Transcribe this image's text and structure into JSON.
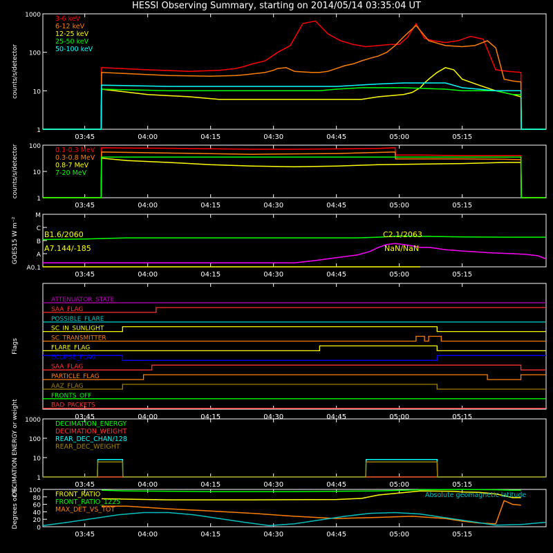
{
  "title": "HESSI Observing Summary, starting on 2014/05/14 03:35:04 UT",
  "x_ticks": [
    "03:45",
    "04:00",
    "04:15",
    "04:30",
    "04:45",
    "05:00",
    "05:15"
  ],
  "chart_data": [
    {
      "id": "lowE",
      "type": "line",
      "ylabel": "counts/s/detector",
      "yscale": "log",
      "ylim": [
        1,
        1000
      ],
      "ytick_labels": [
        "1",
        "10",
        "100",
        "1000"
      ],
      "series": [
        {
          "name": "3-6 keV",
          "color": "#ff0000",
          "x": [
            0,
            13.9,
            14,
            25,
            35,
            42,
            46,
            48,
            50,
            53,
            56,
            59,
            62,
            65,
            68,
            71,
            74,
            77,
            80,
            83,
            85,
            87,
            89,
            91,
            93,
            96,
            99,
            102,
            105,
            108,
            111,
            114,
            114.1,
            120
          ],
          "y": [
            1,
            1,
            40,
            35,
            32,
            34,
            38,
            43,
            50,
            60,
            100,
            150,
            560,
            650,
            300,
            200,
            160,
            140,
            150,
            160,
            160,
            250,
            550,
            230,
            200,
            180,
            200,
            260,
            220,
            35,
            32,
            30,
            1,
            1
          ]
        },
        {
          "name": "6-12 keV",
          "color": "#ff7f00",
          "x": [
            0,
            13.9,
            14,
            30,
            40,
            46,
            48,
            53,
            55,
            56,
            58,
            59,
            60,
            62,
            64,
            66,
            68,
            70,
            72,
            74,
            76,
            78,
            80,
            82,
            84,
            86,
            89,
            92,
            96,
            100,
            103,
            106,
            108,
            110,
            112,
            114,
            114.1,
            120
          ],
          "y": [
            1,
            1,
            30,
            25,
            24,
            25,
            26,
            30,
            34,
            38,
            40,
            36,
            32,
            31,
            30,
            30,
            32,
            38,
            45,
            50,
            60,
            70,
            80,
            100,
            150,
            250,
            500,
            200,
            150,
            140,
            150,
            200,
            130,
            20,
            18,
            17,
            1,
            1
          ]
        },
        {
          "name": "12-25 keV",
          "color": "#ffff00",
          "x": [
            0,
            13.9,
            14,
            25,
            35,
            42,
            48,
            53,
            56,
            60,
            66,
            70,
            76,
            80,
            86,
            88,
            90,
            91,
            92,
            94,
            96,
            98,
            100,
            104,
            108,
            112,
            114,
            114.1,
            120
          ],
          "y": [
            1,
            1,
            11,
            8,
            7,
            6,
            6,
            6,
            6,
            6,
            6,
            6,
            6,
            7,
            8,
            9,
            12,
            16,
            20,
            30,
            40,
            35,
            20,
            14,
            10,
            8,
            7,
            1,
            1
          ]
        },
        {
          "name": "25-50 keV",
          "color": "#00ff00",
          "x": [
            0,
            13.9,
            14,
            30,
            50,
            60,
            66,
            70,
            76,
            86,
            96,
            100,
            104,
            108,
            112,
            114,
            114.1,
            120
          ],
          "y": [
            1,
            1,
            11,
            10,
            10,
            10,
            10,
            11,
            12,
            12,
            11,
            10,
            10,
            10,
            8,
            8,
            1,
            1
          ]
        },
        {
          "name": "50-100 keV",
          "color": "#00ffff",
          "x": [
            0,
            13.9,
            14,
            30,
            50,
            60,
            70,
            80,
            86,
            96,
            100,
            104,
            108,
            112,
            114,
            114.1,
            120
          ],
          "y": [
            1,
            1,
            14,
            13,
            13,
            13,
            13,
            15,
            16,
            16,
            12,
            11,
            10,
            10,
            10,
            1,
            1
          ]
        }
      ]
    },
    {
      "id": "highE",
      "type": "line",
      "ylabel": "counts/s/detector",
      "yscale": "log",
      "ylim": [
        1,
        100
      ],
      "ytick_labels": [
        "1",
        "10",
        "100"
      ],
      "series": [
        {
          "name": "0.1-0.3 MeV",
          "color": "#ff0000",
          "x": [
            0,
            13.9,
            14,
            20,
            30,
            40,
            50,
            60,
            70,
            80,
            84,
            84.1,
            90,
            100,
            110,
            114,
            114.1,
            120
          ],
          "y": [
            1,
            1,
            80,
            78,
            76,
            73,
            70,
            70,
            72,
            75,
            80,
            42,
            42,
            40,
            40,
            40,
            1,
            1
          ]
        },
        {
          "name": "0.3-0.8 MeV",
          "color": "#ff7f00",
          "x": [
            0,
            13.9,
            14,
            30,
            50,
            70,
            84,
            84.1,
            100,
            110,
            114,
            114.1,
            120
          ],
          "y": [
            1,
            1,
            55,
            50,
            45,
            48,
            55,
            30,
            30,
            29,
            28,
            1,
            1
          ]
        },
        {
          "name": "0.8-7 MeV",
          "color": "#ffff00",
          "x": [
            0,
            13.9,
            14,
            20,
            30,
            40,
            50,
            60,
            70,
            80,
            90,
            100,
            110,
            114,
            114.1,
            120
          ],
          "y": [
            1,
            1,
            32,
            26,
            22,
            18,
            16,
            15,
            16,
            18,
            19,
            20,
            22,
            22,
            1,
            1
          ]
        },
        {
          "name": "7-20 MeV",
          "color": "#00ff00",
          "x": [
            0,
            13.9,
            14,
            114,
            114.1,
            120
          ],
          "y": [
            1,
            1,
            35,
            35,
            1,
            1
          ]
        }
      ]
    },
    {
      "id": "goes",
      "type": "line",
      "ylabel": "GOES15 W m⁻²",
      "yscale": "log",
      "ylim": [
        1e-08,
        0.0001
      ],
      "ytick_labels": [
        "A0.1",
        "A",
        "B",
        "C",
        "M"
      ],
      "annotations": [
        "B1.6/2060",
        "C2.1/2063",
        "A7.144/-185",
        "NaN/NaN"
      ],
      "series": [
        {
          "name": "GOES long",
          "color": "#00ff00",
          "x": [
            0,
            10,
            20,
            30,
            40,
            50,
            60,
            70,
            75,
            80,
            85,
            90,
            95,
            100,
            110,
            120
          ],
          "y": [
            1.2e-06,
            1.3e-06,
            1.6e-06,
            1.6e-06,
            1.6e-06,
            1.6e-06,
            1.6e-06,
            1.6e-06,
            1.6e-06,
            1.8e-06,
            2.2e-06,
            2.1e-06,
            2e-06,
            1.9e-06,
            1.8e-06,
            1.8e-06
          ]
        },
        {
          "name": "GOES short",
          "color": "#ff00ff",
          "x": [
            0,
            5,
            10,
            15,
            20,
            25,
            30,
            35,
            40,
            45,
            50,
            55,
            60,
            65,
            70,
            75,
            78,
            80,
            82,
            84,
            86,
            88,
            90,
            92,
            94,
            96,
            98,
            100,
            103,
            106,
            109,
            112,
            115,
            118,
            120
          ],
          "y": [
            2e-08,
            2e-08,
            2e-08,
            2e-08,
            2e-08,
            2e-08,
            2e-08,
            2e-08,
            2e-08,
            2e-08,
            2e-08,
            2e-08,
            2e-08,
            3e-08,
            5e-08,
            8e-08,
            1.5e-07,
            3e-07,
            5e-07,
            6e-07,
            5e-07,
            4e-07,
            3e-07,
            3e-07,
            2.5e-07,
            2e-07,
            1.8e-07,
            1.6e-07,
            1.4e-07,
            1.2e-07,
            1.1e-07,
            1e-07,
            9e-08,
            7e-08,
            4e-08
          ]
        },
        {
          "name": "GOES level",
          "color": "#ffff00",
          "x": [
            0,
            55,
            90
          ],
          "y": [
            1e-08,
            1e-08,
            1e-08
          ]
        }
      ]
    },
    {
      "id": "flags",
      "type": "line",
      "ylabel": "Flags",
      "flags": [
        {
          "name": "ATTENUATOR_STATE",
          "color": "#c000c0",
          "states": [
            [
              0,
              0
            ]
          ]
        },
        {
          "name": "SAA_FLAG",
          "color": "#ff3030",
          "states": [
            [
              0,
              0
            ],
            [
              27,
              1
            ]
          ]
        },
        {
          "name": "POSSIBLE_FLARE",
          "color": "#00c0c0",
          "states": [
            [
              0,
              0
            ]
          ]
        },
        {
          "name": "SC_IN_SUNLIGHT",
          "color": "#ffff00",
          "states": [
            [
              0,
              0
            ],
            [
              19,
              1
            ],
            [
              94,
              0
            ]
          ]
        },
        {
          "name": "SC_TRANSMITTER",
          "color": "#ff7f00",
          "states": [
            [
              0,
              0
            ],
            [
              89,
              1
            ],
            [
              91,
              0
            ],
            [
              92,
              1
            ],
            [
              95,
              0
            ]
          ]
        },
        {
          "name": "FLARE_FLAG",
          "color": "#ffff00",
          "states": [
            [
              0,
              0
            ],
            [
              66,
              1
            ],
            [
              94,
              0
            ]
          ]
        },
        {
          "name": "ECLIPSE_FLAG",
          "color": "#0000ff",
          "states": [
            [
              0,
              1
            ],
            [
              19,
              0
            ],
            [
              94,
              1
            ]
          ]
        },
        {
          "name": "SAA_FLAG",
          "color": "#ff3030",
          "states": [
            [
              0,
              0
            ],
            [
              26,
              1
            ],
            [
              114,
              0
            ]
          ]
        },
        {
          "name": "PARTICLE_FLAG",
          "color": "#ff7f00",
          "states": [
            [
              0,
              0
            ],
            [
              24,
              1
            ],
            [
              106,
              0
            ],
            [
              114,
              1
            ]
          ]
        },
        {
          "name": "AAZ_FLAG",
          "color": "#a08000",
          "states": [
            [
              0,
              0
            ],
            [
              19,
              1
            ],
            [
              94,
              0
            ]
          ]
        },
        {
          "name": "FRONTS_OFF",
          "color": "#00ff00",
          "states": [
            [
              0,
              0
            ]
          ]
        },
        {
          "name": "BAD_PACKETS",
          "color": "#ff3030",
          "states": [
            [
              0,
              0
            ]
          ]
        }
      ]
    },
    {
      "id": "decimation",
      "type": "line",
      "ylabel": "DECIMATION ENERGY or weight",
      "yscale": "log",
      "ylim": [
        1,
        1000
      ],
      "ytick_labels": [
        "1",
        "10",
        "100",
        "1000"
      ],
      "series": [
        {
          "name": "DECIMATION_ENERGY",
          "color": "#00ff00",
          "x": [
            0,
            120
          ],
          "y": [
            1,
            1
          ]
        },
        {
          "name": "DECIMATION_WEIGHT",
          "color": "#ff3030",
          "x": [
            0,
            120
          ],
          "y": [
            1,
            1
          ]
        },
        {
          "name": "REAR_DEC_CHAN/128",
          "color": "#00ffff",
          "x": [
            0,
            13,
            13.1,
            19,
            19.1,
            77,
            77.1,
            94,
            94.1,
            120
          ],
          "y": [
            1,
            1,
            8,
            8,
            1,
            1,
            8,
            8,
            1,
            1
          ]
        },
        {
          "name": "REAR_DEC_WEIGHT",
          "color": "#a08000",
          "x": [
            0,
            13,
            13.1,
            19,
            19.1,
            77,
            77.1,
            94,
            94.1,
            120
          ],
          "y": [
            1,
            1,
            6,
            6,
            1,
            1,
            6,
            6,
            1,
            1
          ]
        }
      ]
    },
    {
      "id": "ratios",
      "type": "line",
      "ylabel": "Degrees or %",
      "ylim": [
        0,
        100
      ],
      "ytick_labels": [
        "0",
        "20",
        "40",
        "60",
        "80",
        "100"
      ],
      "series": [
        {
          "name": "FRONT_RATIO",
          "color": "#ffff00",
          "x": [
            14,
            30,
            50,
            70,
            76,
            80,
            90,
            98,
            100,
            104,
            108,
            112,
            114
          ],
          "y": [
            75,
            72,
            72,
            73,
            76,
            85,
            96,
            95,
            93,
            92,
            88,
            78,
            78
          ]
        },
        {
          "name": "FRONT_RATIO_1225",
          "color": "#00ff00",
          "x": [
            14,
            20,
            40,
            60,
            80,
            90,
            100,
            108,
            112,
            114
          ],
          "y": [
            98,
            96,
            94,
            94,
            96,
            99,
            100,
            99,
            98,
            98
          ]
        },
        {
          "name": "MAX_DET_VS_TOT",
          "color": "#ff7f00",
          "x": [
            14,
            20,
            30,
            40,
            50,
            60,
            70,
            80,
            88,
            96,
            100,
            104,
            108,
            110,
            112,
            114
          ],
          "y": [
            55,
            55,
            48,
            42,
            36,
            28,
            22,
            25,
            28,
            22,
            15,
            10,
            8,
            70,
            60,
            58
          ]
        },
        {
          "name": "Absolute geomagnetic latitude",
          "color": "#00c0c0",
          "x": [
            0,
            6,
            12,
            18,
            24,
            30,
            36,
            42,
            48,
            54,
            60,
            66,
            72,
            78,
            84,
            90,
            96,
            102,
            108,
            114,
            120
          ],
          "y": [
            3,
            12,
            22,
            32,
            38,
            38,
            32,
            22,
            12,
            3,
            8,
            18,
            28,
            36,
            38,
            34,
            24,
            14,
            4,
            6,
            12
          ]
        }
      ]
    }
  ]
}
